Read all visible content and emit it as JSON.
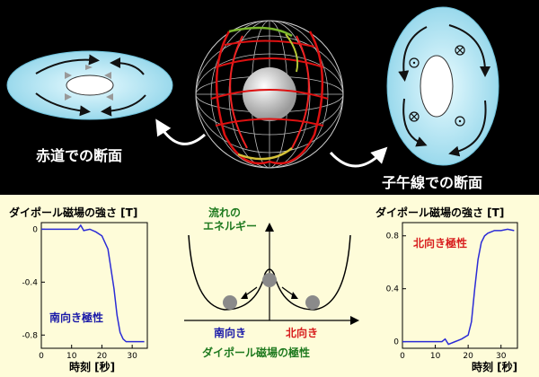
{
  "top": {
    "equator_label": "赤道での断面",
    "meridian_label": "子午線での断面"
  },
  "left_chart": {
    "title": "ダイポール磁場の強さ [T]",
    "xlabel": "時刻 [秒]",
    "annotation": "南向き極性",
    "annotation_color": "#1a1aa8",
    "line_color": "#2b2bd6",
    "yticks": [
      "0",
      "-0.4",
      "-0.8"
    ],
    "xticks": [
      "0",
      "10",
      "20",
      "30"
    ]
  },
  "right_chart": {
    "title": "ダイポール磁場の強さ [T]",
    "xlabel": "時刻 [秒]",
    "annotation": "北向き極性",
    "annotation_color": "#d81e1e",
    "line_color": "#2b2bd6",
    "yticks": [
      "0.8",
      "0.4",
      "0"
    ],
    "xticks": [
      "0",
      "10",
      "20",
      "30"
    ]
  },
  "energy_diagram": {
    "ylabel_line1": "流れの",
    "ylabel_line2": "エネルギー",
    "ylabel_color": "#1f7a1f",
    "left_well": "南向き",
    "left_well_color": "#1a1aa8",
    "right_well": "北向き",
    "right_well_color": "#d81e1e",
    "xlabel": "ダイポール磁場の極性",
    "xlabel_color": "#1f7a1f"
  },
  "chart_data": [
    {
      "type": "line",
      "title": "ダイポール磁場の強さ [T]",
      "xlabel": "時刻 [秒]",
      "ylabel": "",
      "xlim": [
        0,
        35
      ],
      "ylim": [
        -0.9,
        0.05
      ],
      "series": [
        {
          "name": "",
          "x": [
            0,
            10,
            12,
            13,
            14,
            16,
            18,
            20,
            22,
            24,
            25,
            26,
            27,
            28,
            30,
            32,
            34
          ],
          "y": [
            0,
            0,
            0,
            0.03,
            -0.01,
            0,
            -0.02,
            -0.05,
            -0.15,
            -0.45,
            -0.65,
            -0.78,
            -0.83,
            -0.85,
            -0.85,
            -0.85,
            -0.85
          ]
        }
      ],
      "annotations": [
        "南向き極性"
      ]
    },
    {
      "type": "line",
      "title": "ダイポール磁場の強さ [T]",
      "xlabel": "時刻 [秒]",
      "ylabel": "",
      "xlim": [
        0,
        35
      ],
      "ylim": [
        -0.05,
        0.9
      ],
      "series": [
        {
          "name": "",
          "x": [
            0,
            10,
            12,
            13,
            14,
            16,
            18,
            20,
            21,
            22,
            23,
            24,
            25,
            26,
            28,
            30,
            32,
            34
          ],
          "y": [
            0,
            0,
            0,
            0.02,
            -0.02,
            0,
            0.02,
            0.05,
            0.15,
            0.4,
            0.62,
            0.75,
            0.8,
            0.82,
            0.84,
            0.84,
            0.85,
            0.84
          ]
        }
      ],
      "annotations": [
        "北向き極性"
      ]
    }
  ]
}
